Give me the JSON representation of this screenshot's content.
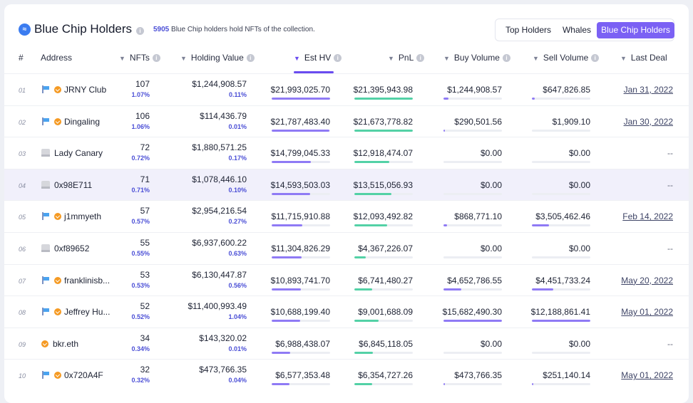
{
  "header": {
    "logo_glyph": "≈",
    "title": "Blue Chip Holders",
    "subtitle_count": "5905",
    "subtitle_text": " Blue Chip holders hold NFTs of the collection."
  },
  "tabs": [
    {
      "label": "Top Holders",
      "active": false
    },
    {
      "label": "Whales",
      "active": false
    },
    {
      "label": "Blue Chip Holders",
      "active": true
    }
  ],
  "columns": {
    "num": "#",
    "address": "Address",
    "nfts": "NFTs",
    "holding_value": "Holding Value",
    "est_hv": "Est HV",
    "pnl": "PnL",
    "buy_volume": "Buy Volume",
    "sell_volume": "Sell Volume",
    "last_deal": "Last Deal"
  },
  "rows": [
    {
      "num": "01",
      "flag": true,
      "badge": true,
      "placeholder": false,
      "name": "JRNY Club",
      "nfts": "107",
      "nfts_pct": "1.07%",
      "holding_value": "$1,244,908.57",
      "holding_pct": "0.11%",
      "est_hv": "$21,993,025.70",
      "pnl": "$21,395,943.98",
      "buy": "$1,244,908.57",
      "sell": "$647,826.85",
      "last_deal": "Jan 31, 2022",
      "est_level": 1.0,
      "pnl_level": 1.0,
      "buy_level": 0.08,
      "sell_level": 0.05
    },
    {
      "num": "02",
      "flag": true,
      "badge": true,
      "placeholder": false,
      "name": "Dingaling",
      "nfts": "106",
      "nfts_pct": "1.06%",
      "holding_value": "$114,436.79",
      "holding_pct": "0.01%",
      "est_hv": "$21,787,483.40",
      "pnl": "$21,673,778.82",
      "buy": "$290,501.56",
      "sell": "$1,909.10",
      "last_deal": "Jan 30, 2022",
      "est_level": 0.99,
      "pnl_level": 1.0,
      "buy_level": 0.02,
      "sell_level": 0.0
    },
    {
      "num": "03",
      "flag": false,
      "badge": false,
      "placeholder": true,
      "name": "Lady Canary",
      "nfts": "72",
      "nfts_pct": "0.72%",
      "holding_value": "$1,880,571.25",
      "holding_pct": "0.17%",
      "est_hv": "$14,799,045.33",
      "pnl": "$12,918,474.07",
      "buy": "$0.00",
      "sell": "$0.00",
      "last_deal": "--",
      "est_level": 0.67,
      "pnl_level": 0.6,
      "buy_level": 0.0,
      "sell_level": 0.0
    },
    {
      "num": "04",
      "flag": false,
      "badge": false,
      "placeholder": true,
      "name": "0x98E711",
      "nfts": "71",
      "nfts_pct": "0.71%",
      "holding_value": "$1,078,446.10",
      "holding_pct": "0.10%",
      "est_hv": "$14,593,503.03",
      "pnl": "$13,515,056.93",
      "buy": "$0.00",
      "sell": "$0.00",
      "last_deal": "--",
      "est_level": 0.66,
      "pnl_level": 0.63,
      "buy_level": 0.0,
      "sell_level": 0.0
    },
    {
      "num": "05",
      "flag": true,
      "badge": true,
      "placeholder": false,
      "name": "j1mmyeth",
      "nfts": "57",
      "nfts_pct": "0.57%",
      "holding_value": "$2,954,216.54",
      "holding_pct": "0.27%",
      "est_hv": "$11,715,910.88",
      "pnl": "$12,093,492.82",
      "buy": "$868,771.10",
      "sell": "$3,505,462.46",
      "last_deal": "Feb 14, 2022",
      "est_level": 0.53,
      "pnl_level": 0.56,
      "buy_level": 0.06,
      "sell_level": 0.29
    },
    {
      "num": "06",
      "flag": false,
      "badge": false,
      "placeholder": true,
      "name": "0xf89652",
      "nfts": "55",
      "nfts_pct": "0.55%",
      "holding_value": "$6,937,600.22",
      "holding_pct": "0.63%",
      "est_hv": "$11,304,826.29",
      "pnl": "$4,367,226.07",
      "buy": "$0.00",
      "sell": "$0.00",
      "last_deal": "--",
      "est_level": 0.51,
      "pnl_level": 0.2,
      "buy_level": 0.0,
      "sell_level": 0.0
    },
    {
      "num": "07",
      "flag": true,
      "badge": true,
      "placeholder": false,
      "name": "franklinisb...",
      "nfts": "53",
      "nfts_pct": "0.53%",
      "holding_value": "$6,130,447.87",
      "holding_pct": "0.56%",
      "est_hv": "$10,893,741.70",
      "pnl": "$6,741,480.27",
      "buy": "$4,652,786.55",
      "sell": "$4,451,733.24",
      "last_deal": "May 20, 2022",
      "est_level": 0.5,
      "pnl_level": 0.31,
      "buy_level": 0.3,
      "sell_level": 0.37
    },
    {
      "num": "08",
      "flag": true,
      "badge": true,
      "placeholder": false,
      "name": "Jeffrey Hu...",
      "nfts": "52",
      "nfts_pct": "0.52%",
      "holding_value": "$11,400,993.49",
      "holding_pct": "1.04%",
      "est_hv": "$10,688,199.40",
      "pnl": "$9,001,688.09",
      "buy": "$15,682,490.30",
      "sell": "$12,188,861.41",
      "last_deal": "May 01, 2022",
      "est_level": 0.49,
      "pnl_level": 0.42,
      "buy_level": 1.0,
      "sell_level": 1.0
    },
    {
      "num": "09",
      "flag": false,
      "badge": true,
      "placeholder": false,
      "name": "bkr.eth",
      "nfts": "34",
      "nfts_pct": "0.34%",
      "holding_value": "$143,320.02",
      "holding_pct": "0.01%",
      "est_hv": "$6,988,438.07",
      "pnl": "$6,845,118.05",
      "buy": "$0.00",
      "sell": "$0.00",
      "last_deal": "--",
      "est_level": 0.32,
      "pnl_level": 0.32,
      "buy_level": 0.0,
      "sell_level": 0.0
    },
    {
      "num": "10",
      "flag": true,
      "badge": true,
      "placeholder": false,
      "name": "0x720A4F",
      "nfts": "32",
      "nfts_pct": "0.32%",
      "holding_value": "$473,766.35",
      "holding_pct": "0.04%",
      "est_hv": "$6,577,353.48",
      "pnl": "$6,354,727.26",
      "buy": "$473,766.35",
      "sell": "$251,140.14",
      "last_deal": "May 01, 2022",
      "est_level": 0.3,
      "pnl_level": 0.3,
      "buy_level": 0.03,
      "sell_level": 0.02
    }
  ]
}
